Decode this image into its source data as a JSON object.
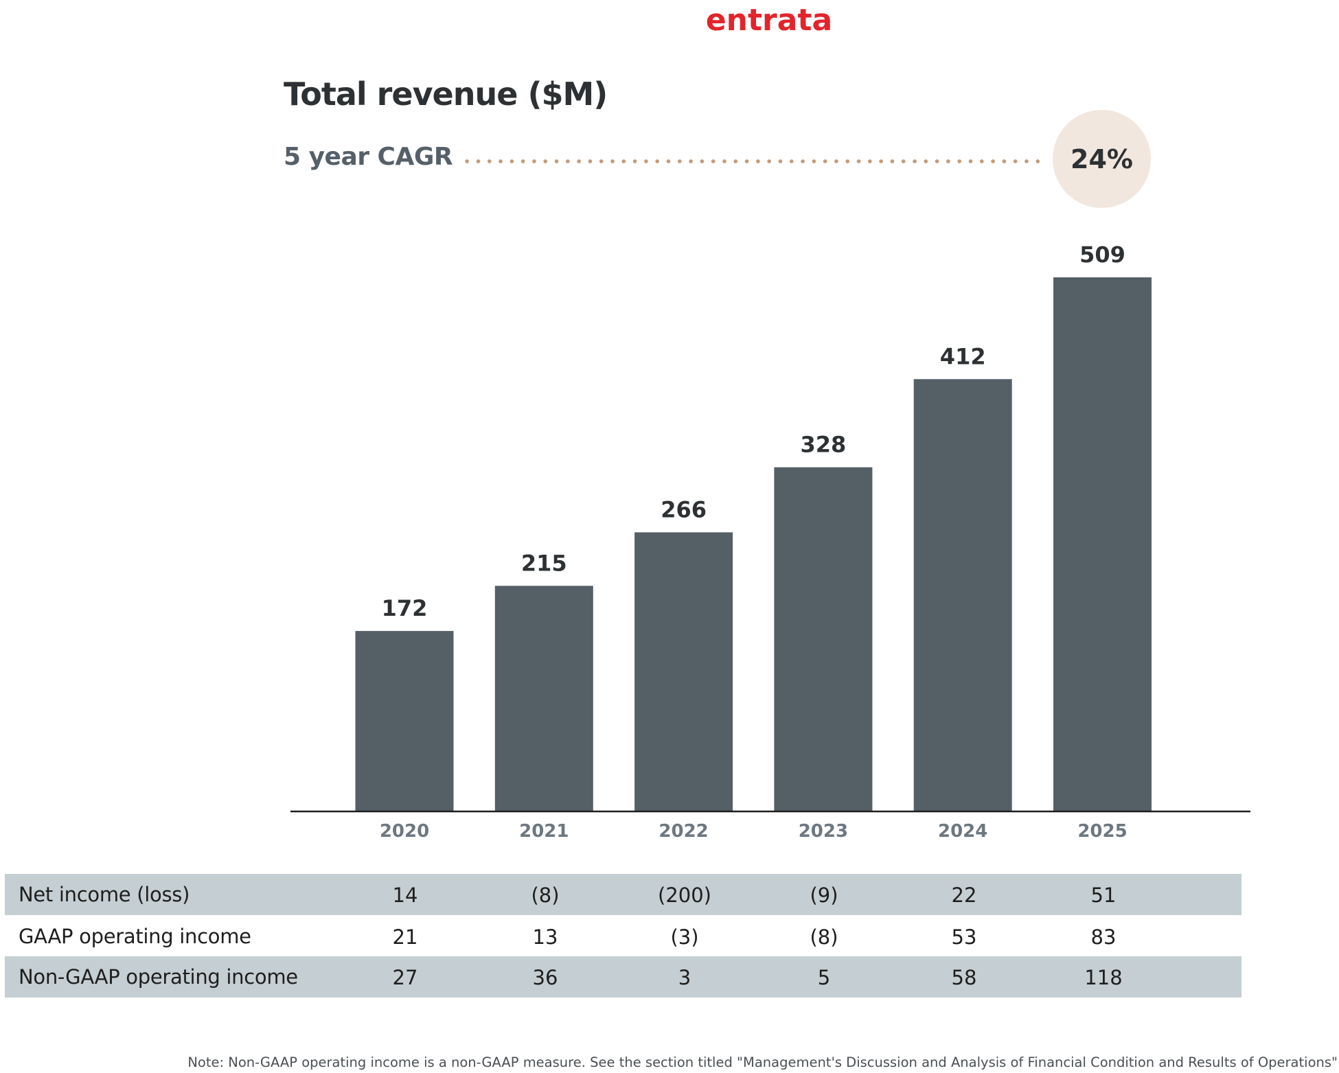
{
  "brand": {
    "logo_text": "entrata",
    "logo_color": "#e3242b"
  },
  "header": {
    "title": "Total revenue ($M)",
    "cagr_label": "5 year CAGR",
    "cagr_value": "24%"
  },
  "chart_data": {
    "type": "bar",
    "title": "Total revenue ($M)",
    "categories": [
      "2020",
      "2021",
      "2022",
      "2023",
      "2024",
      "2025"
    ],
    "values": [
      172,
      215,
      266,
      328,
      412,
      509
    ],
    "ylim": [
      0,
      509
    ],
    "grid": false,
    "bar_color": "#545f66"
  },
  "table": {
    "rows": [
      {
        "label": "Net income (loss)",
        "values": [
          "14",
          "(8)",
          "(200)",
          "(9)",
          "22",
          "51"
        ],
        "shaded": true
      },
      {
        "label": "GAAP operating income",
        "values": [
          "21",
          "13",
          "(3)",
          "(8)",
          "53",
          "83"
        ],
        "shaded": false
      },
      {
        "label": "Non-GAAP operating income",
        "values": [
          "27",
          "36",
          "3",
          "5",
          "58",
          "118"
        ],
        "shaded": true
      }
    ]
  },
  "note": "Note: Non-GAAP operating income is a non-GAAP measure. See the section titled \"Management's Discussion and Analysis of Financial Condition and Results of Operations\""
}
